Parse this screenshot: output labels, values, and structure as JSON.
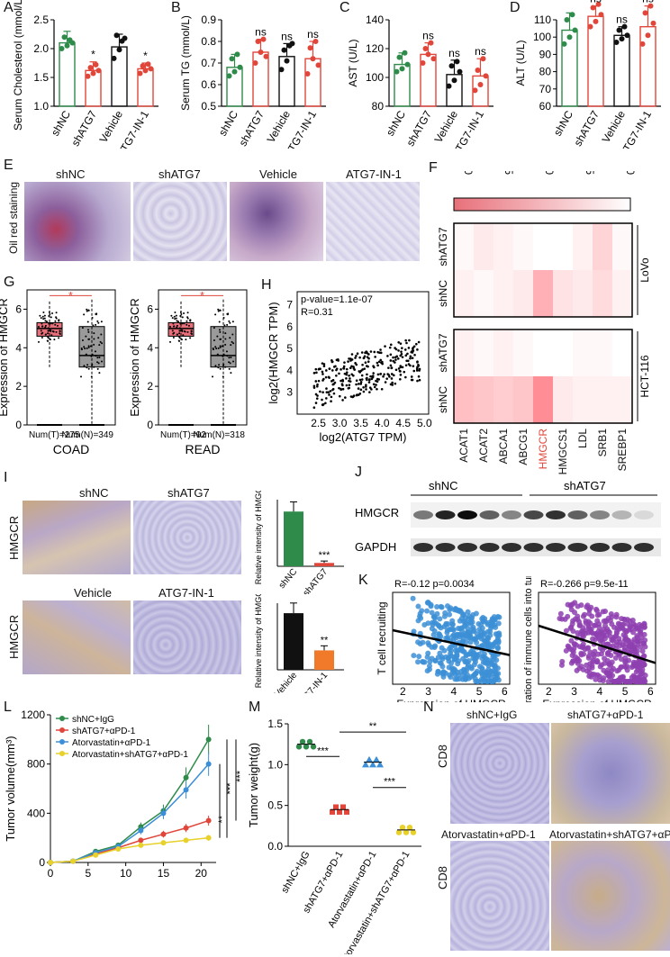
{
  "panels": {
    "A": {
      "letter": "A",
      "ylabel": "Serum Cholesterol (mmol/L)",
      "cats": [
        "shNC",
        "shATG7",
        "Vehicle",
        "ATG7-IN-1"
      ],
      "ticks": [
        "1.0",
        "1.5",
        "2.0",
        "2.5"
      ],
      "sig": [
        "",
        "*",
        "",
        "*"
      ]
    },
    "B": {
      "letter": "B",
      "ylabel": "Serum TG (mmol/L)",
      "cats": [
        "shNC",
        "shATG7",
        "Vehicle",
        "ATG7-IN-1"
      ],
      "ticks": [
        "0.5",
        "0.6",
        "0.7",
        "0.8",
        "0.9"
      ],
      "sig": [
        "",
        "ns",
        "ns",
        "ns"
      ]
    },
    "C": {
      "letter": "C",
      "ylabel": "AST (U/L)",
      "cats": [
        "shNC",
        "shATG7",
        "Vehicle",
        "ATG7-IN-1"
      ],
      "ticks": [
        "80",
        "100",
        "120",
        "140"
      ],
      "sig": [
        "",
        "ns",
        "ns",
        "ns"
      ]
    },
    "D": {
      "letter": "D",
      "ylabel": "ALT (U/L)",
      "cats": [
        "shNC",
        "shATG7",
        "Vehicle",
        "ATG7-IN-1"
      ],
      "ticks": [
        "60",
        "70",
        "80",
        "90",
        "100",
        "110"
      ],
      "sig": [
        "",
        "ns",
        "ns",
        "ns"
      ]
    },
    "E": {
      "letter": "E",
      "side": "Oil red staining",
      "titles": [
        "shNC",
        "shATG7",
        "Vehicle",
        "ATG7-IN-1"
      ]
    },
    "F": {
      "letter": "F",
      "scale": [
        "3.0",
        "2.5",
        "2.0",
        "1.5",
        "1.0"
      ],
      "rows": [
        "shATG7",
        "shNC",
        "shATG7",
        "shNC"
      ],
      "groups": [
        "LoVo",
        "HCT-116"
      ],
      "genes": [
        "ACAT1",
        "ACAT2",
        "ABCA1",
        "ABCG1",
        "HMGCR",
        "HMGCS1",
        "LDL",
        "SRB1",
        "SREBP1"
      ]
    },
    "G": {
      "letter": "G",
      "ylabel": "Expression of HMGCR",
      "ticks": [
        "0",
        "2",
        "4",
        "6"
      ],
      "coad": {
        "name": "COAD",
        "nt": "Num(T)=275",
        "nn": "Num(N)=349"
      },
      "read": {
        "name": "READ",
        "nt": "Num(T)=92",
        "nn": "Num(N)=318"
      }
    },
    "H": {
      "letter": "H",
      "xlabel": "log2(ATG7 TPM)",
      "ylabel": "log2(HMGCR TPM)",
      "pval": "p-value=1.1e-07",
      "r": "R=0.31",
      "xticks": [
        "2.5",
        "3.0",
        "3.5",
        "4.0",
        "4.5",
        "5.0"
      ],
      "yticks": [
        "3",
        "4",
        "5",
        "6",
        "7"
      ]
    },
    "I": {
      "letter": "I",
      "side": "HMGCR",
      "top": [
        "shNC",
        "shATG7"
      ],
      "bottom": [
        "Vehicle",
        "ATG7-IN-1"
      ],
      "ylabel": "Relative intensity of HMGCR",
      "sig": "***",
      "sig2": "**",
      "cats1": [
        "shNC",
        "shATG7"
      ],
      "cats2": [
        "Vehicle",
        "ATG7-IN-1"
      ]
    },
    "J": {
      "letter": "J",
      "groups": [
        "shNC",
        "shATG7"
      ],
      "rows": [
        "HMGCR",
        "GAPDH"
      ]
    },
    "K": {
      "letter": "K",
      "p1": {
        "stat": "R=-0.12  p=0.0034",
        "ylabel": "T cell recruiting",
        "xlabel": "Expression of HMGCR"
      },
      "p2": {
        "stat": "R=-0.266  p=9.5e-11",
        "ylabel": "Infiltration of immune cells into tumors",
        "xlabel": "Expression of HMGCR"
      },
      "xticks": [
        "2",
        "3",
        "4",
        "5",
        "6"
      ]
    },
    "L": {
      "letter": "L",
      "ylabel": "Tumor volume(mm³)",
      "xlabel": "Days",
      "xticks": [
        "0",
        "5",
        "10",
        "15",
        "20"
      ],
      "yticks": [
        "0",
        "400",
        "800",
        "1200"
      ],
      "legend": [
        "shNC+IgG",
        "shATG7+αPD-1",
        "Atorvastatin+αPD-1",
        "Atorvastatin+shATG7+αPD-1"
      ],
      "sig": [
        "***",
        "***",
        "**"
      ]
    },
    "M": {
      "letter": "M",
      "ylabel": "Tumor weight(g)",
      "yticks": [
        "0.0",
        "0.5",
        "1.0",
        "1.5"
      ],
      "cats": [
        "shNC+IgG",
        "shATG7+αPD-1",
        "Atorvastatin+αPD-1",
        "Atorvastatin+shATG7+αPD-1"
      ],
      "sig": [
        "***",
        "**",
        "***"
      ]
    },
    "N": {
      "letter": "N",
      "side": "CD8",
      "titles": [
        "shNC+IgG",
        "shATG7+αPD-1",
        "Atorvastatin+αPD-1",
        "Atorvastatin+shATG7+αPD-1"
      ]
    }
  },
  "colors": {
    "green": "#2e8b4a",
    "red": "#e0463a",
    "black": "#111111",
    "blue": "#3c8fd6",
    "yellow": "#e8d12a",
    "purple": "#8e3fb0"
  },
  "chart_data": [
    {
      "type": "bar",
      "panel": "A",
      "categories": [
        "shNC",
        "shATG7",
        "Vehicle",
        "ATG7-IN-1"
      ],
      "values": [
        2.1,
        1.62,
        2.03,
        1.65
      ],
      "ylabel": "Serum Cholesterol (mmol/L)",
      "ylim": [
        1.0,
        2.5
      ]
    },
    {
      "type": "bar",
      "panel": "B",
      "categories": [
        "shNC",
        "shATG7",
        "Vehicle",
        "ATG7-IN-1"
      ],
      "values": [
        0.68,
        0.75,
        0.73,
        0.72
      ],
      "ylabel": "Serum TG (mmol/L)",
      "ylim": [
        0.5,
        0.9
      ]
    },
    {
      "type": "bar",
      "panel": "C",
      "categories": [
        "shNC",
        "shATG7",
        "Vehicle",
        "ATG7-IN-1"
      ],
      "values": [
        109,
        116,
        102,
        101
      ],
      "ylabel": "AST (U/L)",
      "ylim": [
        80,
        140
      ]
    },
    {
      "type": "bar",
      "panel": "D",
      "categories": [
        "shNC",
        "shATG7",
        "Vehicle",
        "ATG7-IN-1"
      ],
      "values": [
        104,
        112,
        101,
        106
      ],
      "ylabel": "ALT (U/L)",
      "ylim": [
        60,
        110
      ]
    },
    {
      "type": "bar",
      "panel": "I-top",
      "categories": [
        "shNC",
        "shATG7"
      ],
      "values": [
        11.5,
        0.7
      ]
    },
    {
      "type": "bar",
      "panel": "I-bottom",
      "categories": [
        "Vehicle",
        "ATG7-IN-1"
      ],
      "values": [
        10.2,
        3.5
      ]
    },
    {
      "type": "line",
      "panel": "L",
      "x": [
        0,
        3,
        6,
        9,
        12,
        15,
        18,
        21
      ],
      "series": [
        {
          "name": "shNC+IgG",
          "values": [
            0,
            10,
            90,
            140,
            290,
            420,
            690,
            1000
          ]
        },
        {
          "name": "shATG7+αPD-1",
          "values": [
            0,
            10,
            70,
            120,
            180,
            230,
            280,
            340
          ]
        },
        {
          "name": "Atorvastatin+αPD-1",
          "values": [
            0,
            10,
            80,
            130,
            260,
            400,
            590,
            800
          ]
        },
        {
          "name": "Atorvastatin+shATG7+αPD-1",
          "values": [
            0,
            10,
            60,
            110,
            140,
            160,
            180,
            200
          ]
        }
      ],
      "ylim": [
        0,
        1200
      ],
      "xlim": [
        0,
        22
      ]
    },
    {
      "type": "scatter",
      "panel": "M",
      "categories": [
        "shNC+IgG",
        "shATG7+αPD-1",
        "Atorvastatin+αPD-1",
        "Atorvastatin+shATG7+αPD-1"
      ],
      "values": [
        1.25,
        0.45,
        1.03,
        0.2
      ],
      "ylim": [
        0,
        1.5
      ]
    },
    {
      "type": "heatmap",
      "panel": "F",
      "rows": [
        "LoVo shATG7",
        "LoVo shNC",
        "HCT-116 shATG7",
        "HCT-116 shNC"
      ],
      "cols": [
        "ACAT1",
        "ACAT2",
        "ABCA1",
        "ABCG1",
        "HMGCR",
        "HMGCS1",
        "LDL",
        "SRB1",
        "SREBP1"
      ],
      "values": [
        [
          1.1,
          1.3,
          1.2,
          1.1,
          1.0,
          1.0,
          1.2,
          1.6,
          1.1
        ],
        [
          1.2,
          1.1,
          1.2,
          1.3,
          2.1,
          1.4,
          1.3,
          1.5,
          1.2
        ],
        [
          1.2,
          1.1,
          1.2,
          1.1,
          1.0,
          1.0,
          1.1,
          1.1,
          1.0
        ],
        [
          1.9,
          1.8,
          1.7,
          1.8,
          2.6,
          1.3,
          1.2,
          1.2,
          1.2
        ]
      ]
    }
  ]
}
